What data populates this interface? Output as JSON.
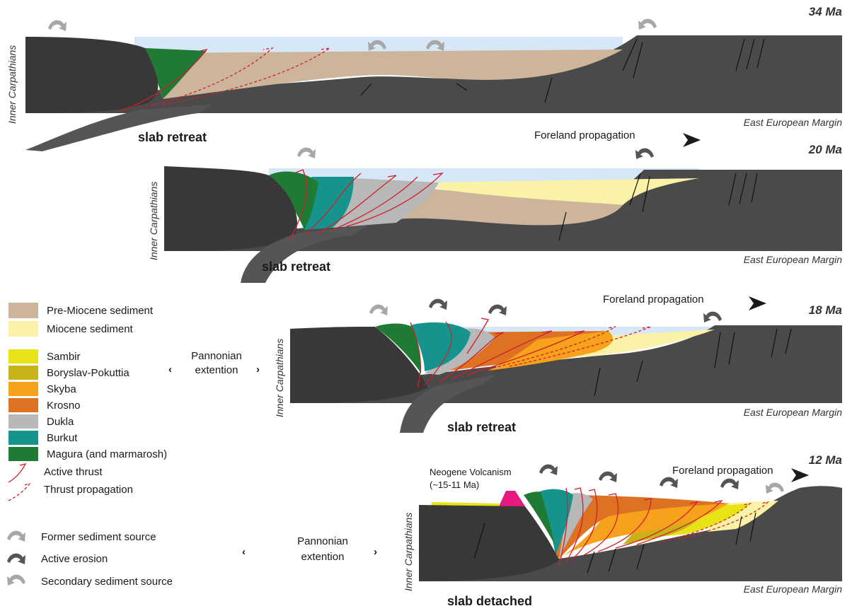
{
  "colors": {
    "pre_miocene": "#cdb59b",
    "miocene": "#faf2a6",
    "sambir": "#e8e317",
    "boryslav_pokuttia": "#c9b11a",
    "skyba": "#f7a21c",
    "krosno": "#de7223",
    "dukla": "#b8b8b8",
    "burkut": "#17938e",
    "magura": "#1f7a34",
    "volcanism": "#e6197f",
    "rock": "#4a4a4a",
    "sea": "#d6e8f7",
    "thrust": "#d11f2a",
    "arrow_former": "#a7a7a7",
    "arrow_active": "#555555"
  },
  "panels": [
    {
      "age": "34 Ma",
      "inner": "Inner Carpathians",
      "margin": "East European Margin",
      "slab": "slab retreat",
      "propagation": "Foreland propagation"
    },
    {
      "age": "20 Ma",
      "inner": "Inner Carpathians",
      "margin": "East European Margin",
      "slab": "slab retreat"
    },
    {
      "age": "18 Ma",
      "inner": "Inner Carpathians",
      "margin": "East European Margin",
      "slab": "slab retreat",
      "propagation": "Foreland propagation"
    },
    {
      "age": "12 Ma",
      "inner": "Inner Carpathians",
      "margin": "East European Margin",
      "slab": "slab detached",
      "propagation": "Foreland propagation",
      "volcanism": "Neogene Volcanism",
      "volcanism_age": "(~15-11 Ma)"
    }
  ],
  "pannonian": {
    "line1": "Pannonian",
    "line2": "extention",
    "arrow_left": "‹",
    "arrow_right": "›"
  },
  "legend": {
    "sediments": [
      {
        "label": "Pre-Miocene sediment",
        "color": "#cdb59b"
      },
      {
        "label": "Miocene sediment",
        "color": "#faf2a6"
      }
    ],
    "units": [
      {
        "label": "Sambir",
        "color": "#e8e317"
      },
      {
        "label": "Boryslav-Pokuttia",
        "color": "#c9b11a"
      },
      {
        "label": "Skyba",
        "color": "#f7a21c"
      },
      {
        "label": "Krosno",
        "color": "#de7223"
      },
      {
        "label": "Dukla",
        "color": "#b8b8b8"
      },
      {
        "label": "Burkut",
        "color": "#17938e"
      },
      {
        "label": "Magura (and marmarosh)",
        "color": "#1f7a34"
      }
    ],
    "thrust_active": "Active thrust",
    "thrust_propagation": "Thrust propagation",
    "former_source": "Former sediment source",
    "active_erosion": "Active erosion",
    "secondary_source": "Secondary sediment source"
  }
}
